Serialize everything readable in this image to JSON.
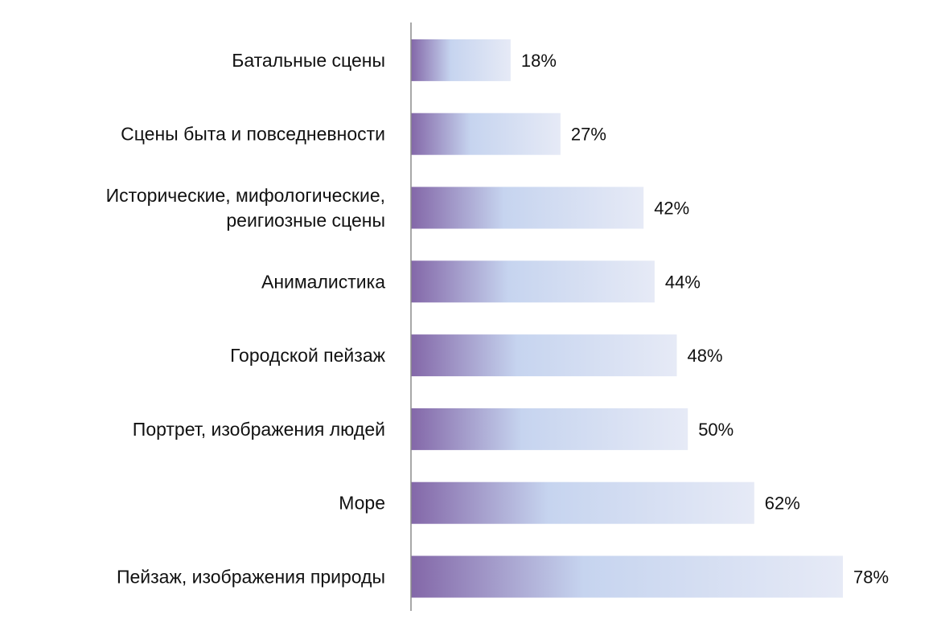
{
  "chart_data": {
    "type": "bar",
    "orientation": "horizontal",
    "categories": [
      [
        "Батальные сцены"
      ],
      [
        "Сцены быта и повседневности"
      ],
      [
        "Исторические, мифологические,",
        "реигиозные сцены"
      ],
      [
        "Анималистика"
      ],
      [
        "Городской пейзаж"
      ],
      [
        "Портрет, изображения людей"
      ],
      [
        "Море"
      ],
      [
        "Пейзаж, изображения природы"
      ]
    ],
    "values": [
      18,
      27,
      42,
      44,
      48,
      50,
      62,
      78
    ],
    "value_labels": [
      "18%",
      "27%",
      "42%",
      "44%",
      "48%",
      "50%",
      "62%",
      "78%"
    ],
    "unit": "%",
    "xlim": [
      0,
      90
    ],
    "grid": false,
    "legend": "none",
    "colors": {
      "gradient_start": "#8367a8",
      "gradient_mid": "#c6d4ef",
      "gradient_end": "#e6eaf6",
      "axis": "#8c8c8c",
      "text": "#111111"
    }
  }
}
